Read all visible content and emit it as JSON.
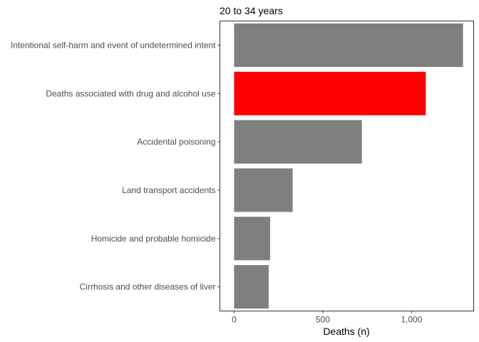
{
  "chart_data": {
    "type": "bar",
    "orientation": "horizontal",
    "title": "20 to 34 years",
    "xlabel": "Deaths (n)",
    "ylabel": "",
    "categories": [
      "Intentional self-harm and event of undetermined intent",
      "Deaths associated with drug and alcohol use",
      "Accidental poisoning",
      "Land transport accidents",
      "Homicide and probable homicide",
      "Cirrhosis and other diseases of liver"
    ],
    "values": [
      1290,
      1080,
      720,
      330,
      203,
      195
    ],
    "bar_colors": [
      "#7f7f7f",
      "#ff0000",
      "#7f7f7f",
      "#7f7f7f",
      "#7f7f7f",
      "#7f7f7f"
    ],
    "xlim": [
      -80,
      1350
    ],
    "x_ticks": [
      {
        "value": 0,
        "label": "0"
      },
      {
        "value": 500,
        "label": "500"
      },
      {
        "value": 1000,
        "label": "1,000"
      }
    ],
    "grid": false,
    "legend": "none"
  }
}
